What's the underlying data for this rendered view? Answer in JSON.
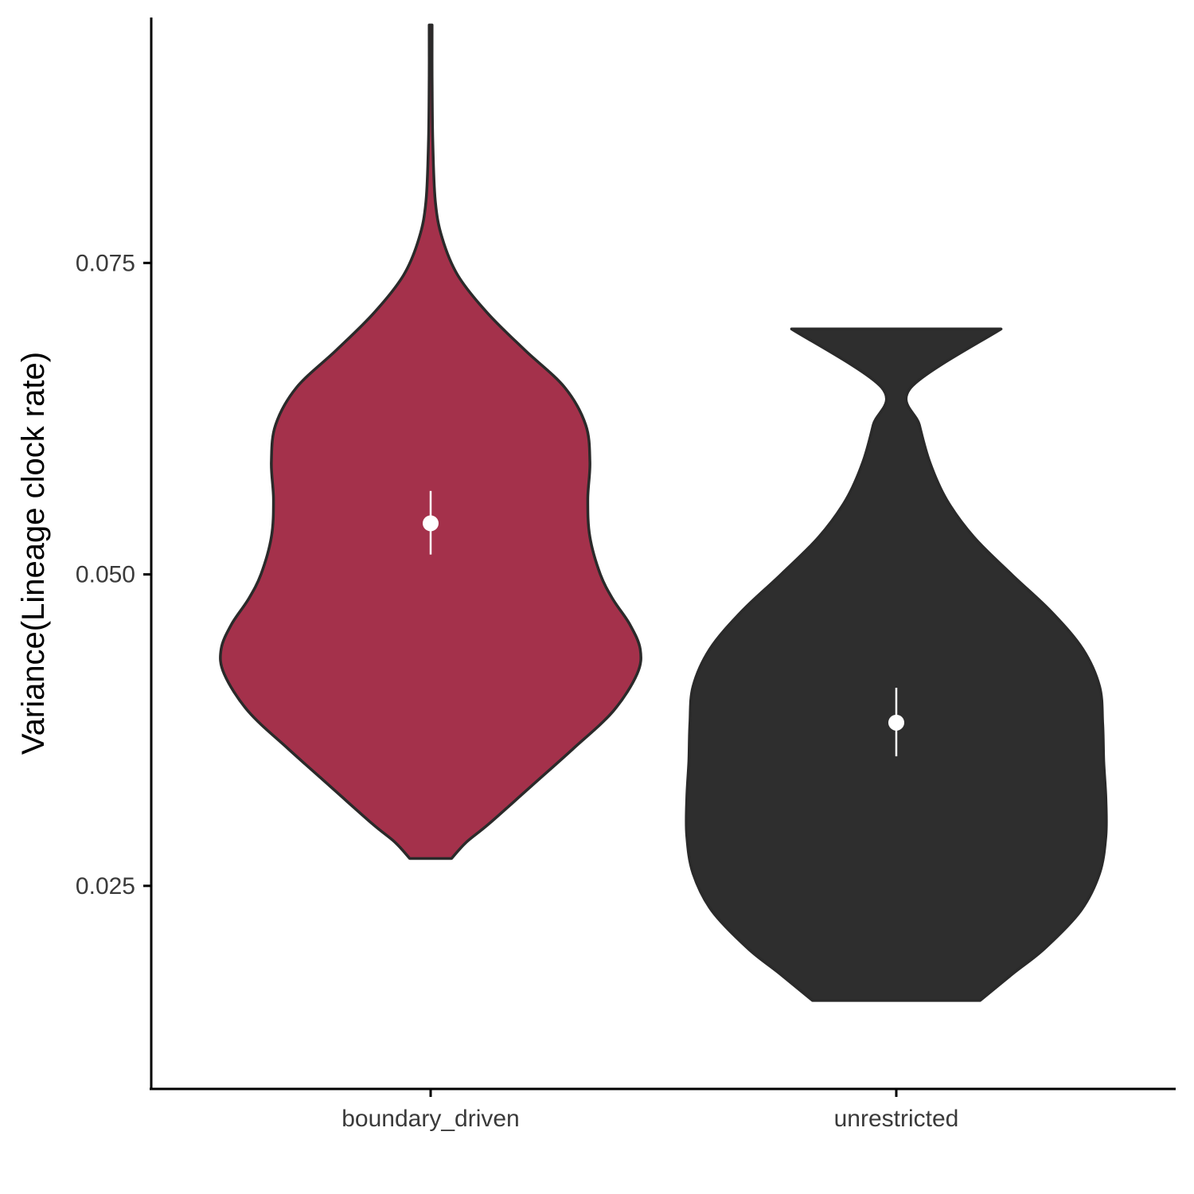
{
  "chart_data": {
    "type": "violin",
    "title": "",
    "xlabel": "",
    "ylabel": "Variance(Lineage clock rate)",
    "ylim": [
      0.0087,
      0.0947
    ],
    "yticks": [
      0.025,
      0.05,
      0.075
    ],
    "ytick_labels": [
      "0.025",
      "0.050",
      "0.075"
    ],
    "categories": [
      "boundary_driven",
      "unrestricted"
    ],
    "grid": false,
    "legend": "none",
    "colors": {
      "boundary_driven": "#a4314b",
      "unrestricted": "#2e2e2e",
      "outline": "#2a2a2a",
      "summary": "#ffffff",
      "axis": "#000000"
    },
    "series": [
      {
        "category": "boundary_driven",
        "y_min": 0.0272,
        "y_max": 0.0941,
        "mean": 0.0541,
        "interval": [
          0.0516,
          0.0567
        ],
        "density_profile": [
          [
            0.0272,
            0.1
          ],
          [
            0.0285,
            0.17
          ],
          [
            0.03,
            0.28
          ],
          [
            0.033,
            0.48
          ],
          [
            0.036,
            0.68
          ],
          [
            0.039,
            0.87
          ],
          [
            0.042,
            0.985
          ],
          [
            0.044,
            1.0
          ],
          [
            0.046,
            0.95
          ],
          [
            0.048,
            0.87
          ],
          [
            0.05,
            0.81
          ],
          [
            0.053,
            0.76
          ],
          [
            0.056,
            0.75
          ],
          [
            0.059,
            0.76
          ],
          [
            0.062,
            0.74
          ],
          [
            0.065,
            0.64
          ],
          [
            0.068,
            0.45
          ],
          [
            0.071,
            0.27
          ],
          [
            0.074,
            0.13
          ],
          [
            0.077,
            0.055
          ],
          [
            0.08,
            0.022
          ],
          [
            0.085,
            0.01
          ],
          [
            0.09,
            0.007
          ],
          [
            0.0941,
            0.007
          ]
        ]
      },
      {
        "category": "unrestricted",
        "y_min": 0.0158,
        "y_max": 0.0697,
        "mean": 0.0381,
        "interval": [
          0.0354,
          0.0409
        ],
        "density_profile": [
          [
            0.0158,
            0.4
          ],
          [
            0.018,
            0.56
          ],
          [
            0.02,
            0.71
          ],
          [
            0.023,
            0.88
          ],
          [
            0.026,
            0.97
          ],
          [
            0.029,
            1.0
          ],
          [
            0.032,
            1.0
          ],
          [
            0.035,
            0.99
          ],
          [
            0.038,
            0.985
          ],
          [
            0.041,
            0.97
          ],
          [
            0.044,
            0.89
          ],
          [
            0.047,
            0.74
          ],
          [
            0.05,
            0.55
          ],
          [
            0.053,
            0.37
          ],
          [
            0.056,
            0.24
          ],
          [
            0.059,
            0.16
          ],
          [
            0.062,
            0.11
          ],
          [
            0.065,
            0.07
          ],
          [
            0.0697,
            0.5
          ]
        ]
      }
    ]
  }
}
